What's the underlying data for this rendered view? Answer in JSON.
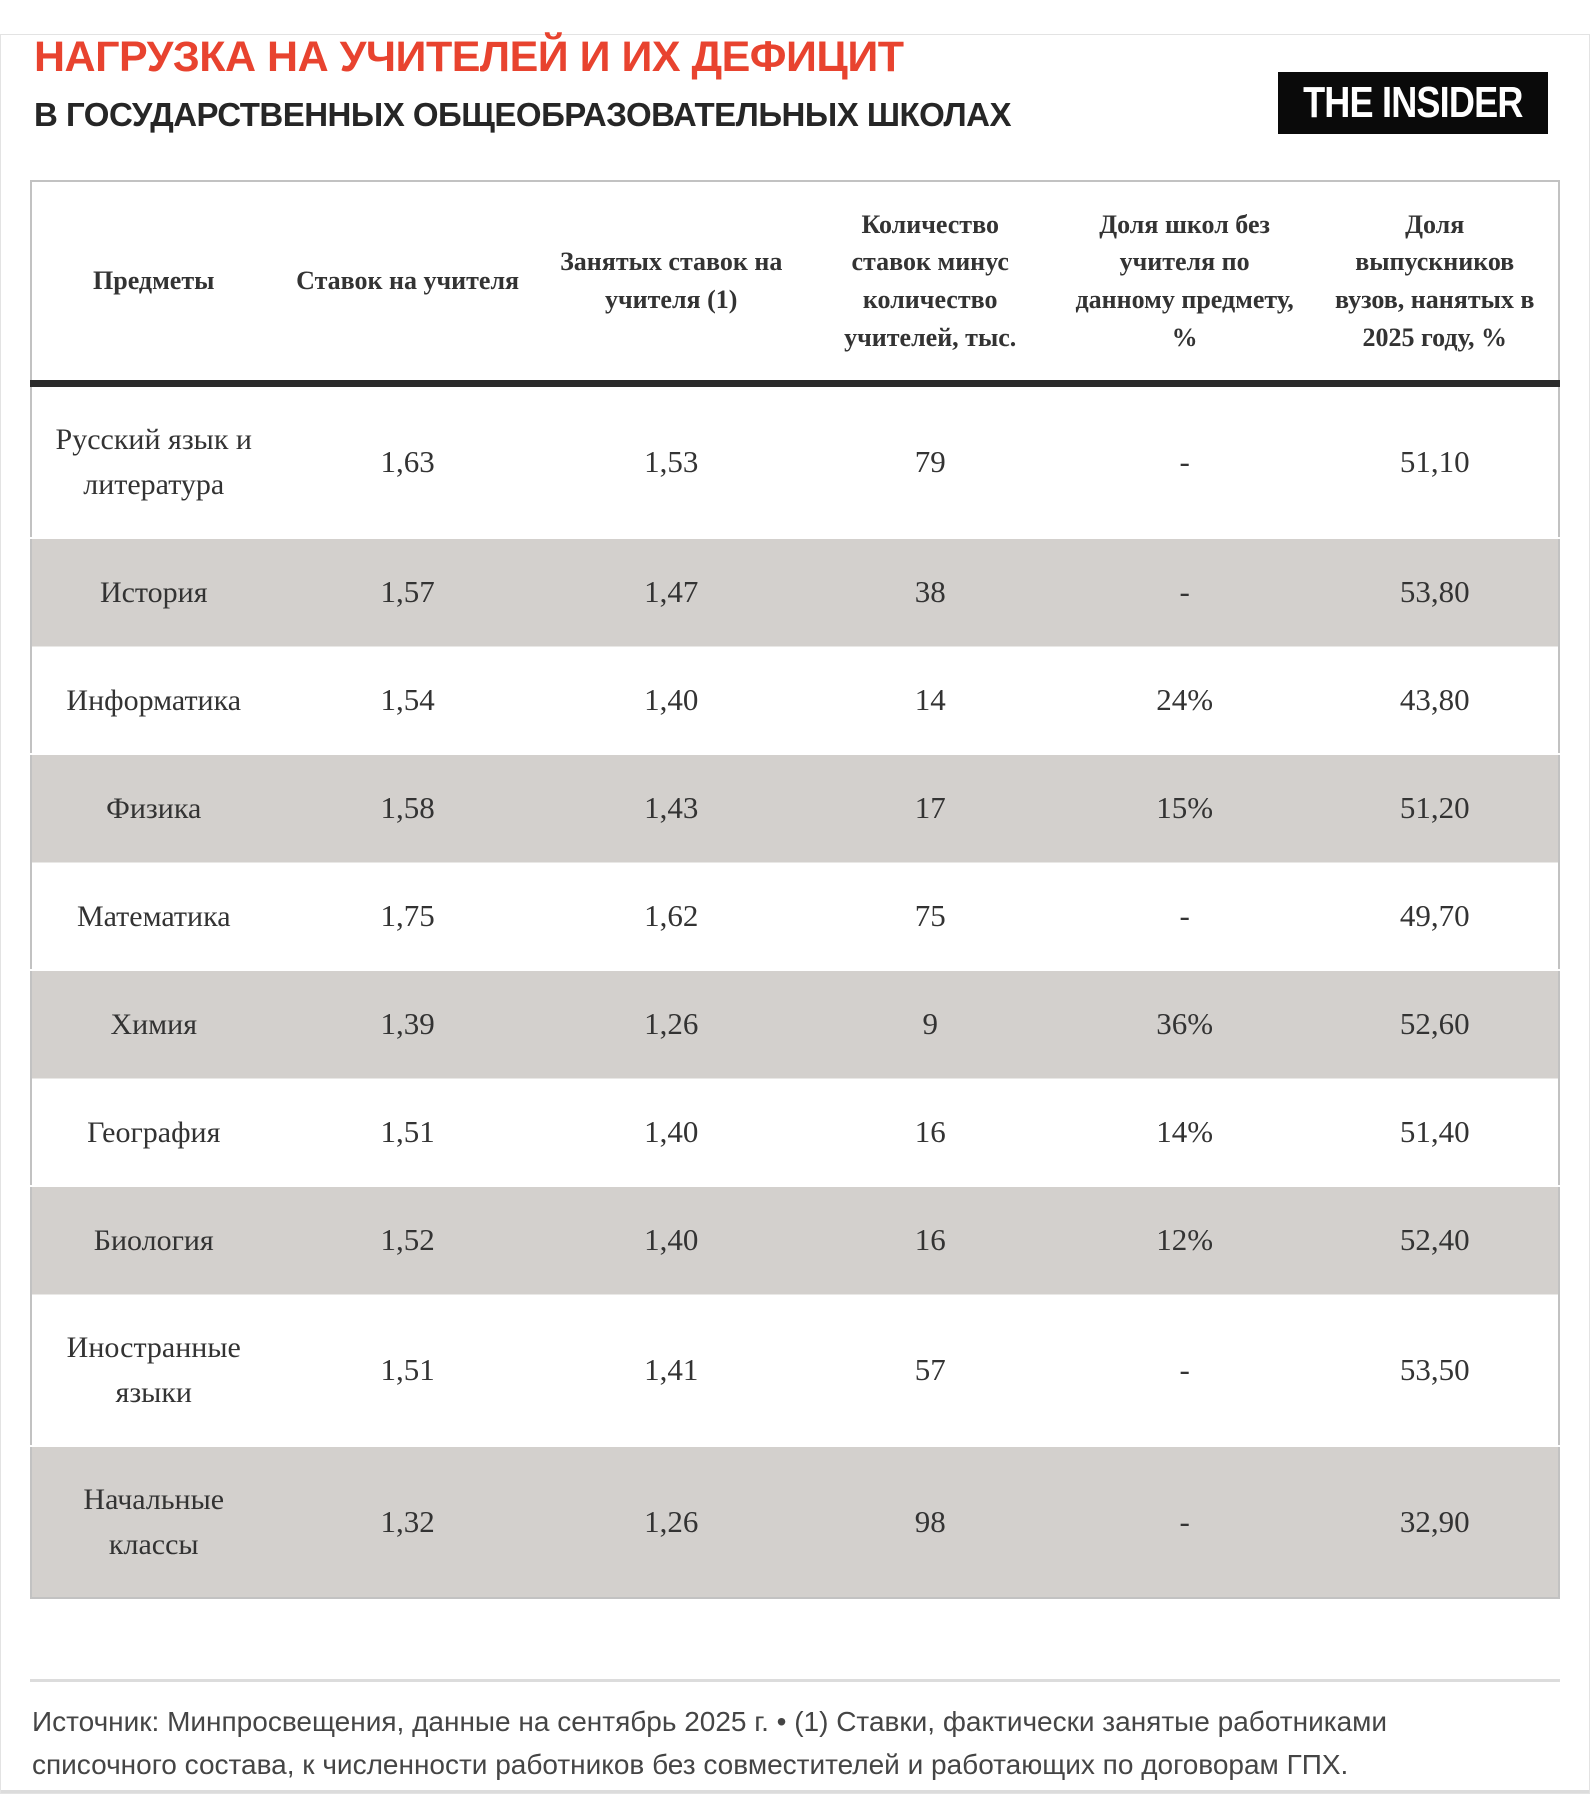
{
  "header": {
    "title": "НАГРУЗКА НА УЧИТЕЛЕЙ И ИХ ДЕФИЦИТ",
    "subtitle": "В ГОСУДАРСТВЕННЫХ ОБЩЕОБРАЗОВАТЕЛЬНЫХ ШКОЛАХ",
    "title_color": "#e8432f",
    "logo": {
      "text": "THE INSIDER",
      "background": "#0a0a0a",
      "text_color": "#ffffff"
    }
  },
  "chart_data": {
    "type": "table",
    "title": "Нагрузка на учителей и их дефицит в государственных общеобразовательных школах",
    "stripe_color": "#d3d0cd",
    "columns": [
      "Предметы",
      "Ставок на учителя",
      "Занятых ставок на учителя (1)",
      "Количество ставок минус количество учителей, тыс.",
      "Доля школ без учителя по данному предмету, %",
      "Доля выпускников вузов, нанятых в 2025 году, %"
    ],
    "rows": [
      [
        "Русский язык и литература",
        "1,63",
        "1,53",
        "79",
        "-",
        "51,10"
      ],
      [
        "История",
        "1,57",
        "1,47",
        "38",
        "-",
        "53,80"
      ],
      [
        "Информатика",
        "1,54",
        "1,40",
        "14",
        "24%",
        "43,80"
      ],
      [
        "Физика",
        "1,58",
        "1,43",
        "17",
        "15%",
        "51,20"
      ],
      [
        "Математика",
        "1,75",
        "1,62",
        "75",
        "-",
        "49,70"
      ],
      [
        "Химия",
        "1,39",
        "1,26",
        "9",
        "36%",
        "52,60"
      ],
      [
        "География",
        "1,51",
        "1,40",
        "16",
        "14%",
        "51,40"
      ],
      [
        "Биология",
        "1,52",
        "1,40",
        "16",
        "12%",
        "52,40"
      ],
      [
        "Иностранные языки",
        "1,51",
        "1,41",
        "57",
        "-",
        "53,50"
      ],
      [
        "Начальные классы",
        "1,32",
        "1,26",
        "98",
        "-",
        "32,90"
      ]
    ]
  },
  "footer": {
    "source": "Источник: Минпросвещения, данные на сентябрь 2025 г. • (1) Ставки, фактически занятые работниками списочного состава, к численности работников без совместителей и работающих по договорам ГПХ."
  }
}
